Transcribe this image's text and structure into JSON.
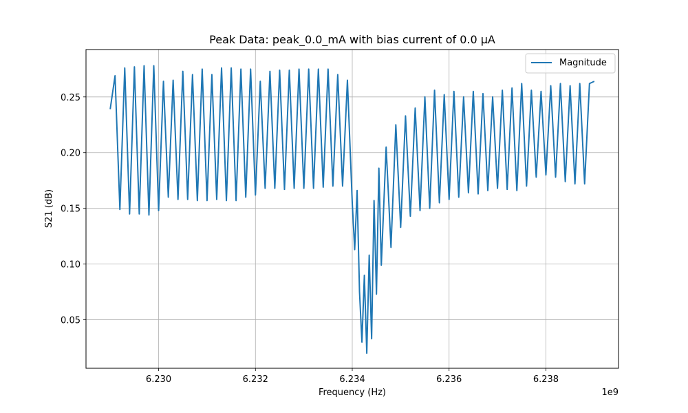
{
  "chart_data": {
    "type": "line",
    "title": "Peak Data: peak_0.0_mA with bias current of 0.0 μA",
    "xlabel": "Frequency (Hz)",
    "ylabel": "S21 (dB)",
    "x_offset_label": "1e9",
    "xlim": [
      6.2285,
      6.2395
    ],
    "ylim": [
      0.0065,
      0.2925
    ],
    "x_ticks": [
      6.23,
      6.232,
      6.234,
      6.236,
      6.238
    ],
    "x_tick_labels": [
      "6.230",
      "6.232",
      "6.234",
      "6.236",
      "6.238"
    ],
    "y_ticks": [
      0.05,
      0.1,
      0.15,
      0.2,
      0.25
    ],
    "y_tick_labels": [
      "0.05",
      "0.10",
      "0.15",
      "0.20",
      "0.25"
    ],
    "grid": true,
    "legend_position": "upper right",
    "series": [
      {
        "name": "Magnitude",
        "color": "#1f77b4",
        "x_start": 6.229,
        "x_end": 6.239,
        "dip_center": 6.23423,
        "cycles": 100,
        "start_value": 0.239,
        "end_value": 0.264,
        "points": [
          [
            6.229,
            0.239
          ],
          [
            6.2291,
            0.269
          ],
          [
            6.2292,
            0.149
          ],
          [
            6.2293,
            0.276
          ],
          [
            6.2294,
            0.145
          ],
          [
            6.2295,
            0.277
          ],
          [
            6.2296,
            0.145
          ],
          [
            6.2297,
            0.278
          ],
          [
            6.2298,
            0.144
          ],
          [
            6.2299,
            0.278
          ],
          [
            6.23,
            0.148
          ],
          [
            6.2301,
            0.264
          ],
          [
            6.2302,
            0.16
          ],
          [
            6.2303,
            0.265
          ],
          [
            6.2304,
            0.158
          ],
          [
            6.2305,
            0.273
          ],
          [
            6.2306,
            0.158
          ],
          [
            6.2307,
            0.27
          ],
          [
            6.2308,
            0.157
          ],
          [
            6.2309,
            0.275
          ],
          [
            6.231,
            0.157
          ],
          [
            6.2311,
            0.27
          ],
          [
            6.2312,
            0.158
          ],
          [
            6.2313,
            0.276
          ],
          [
            6.2314,
            0.157
          ],
          [
            6.2315,
            0.276
          ],
          [
            6.2316,
            0.157
          ],
          [
            6.2317,
            0.275
          ],
          [
            6.2318,
            0.16
          ],
          [
            6.2319,
            0.275
          ],
          [
            6.232,
            0.162
          ],
          [
            6.2321,
            0.264
          ],
          [
            6.2322,
            0.168
          ],
          [
            6.2323,
            0.273
          ],
          [
            6.2324,
            0.168
          ],
          [
            6.2325,
            0.274
          ],
          [
            6.2326,
            0.167
          ],
          [
            6.2327,
            0.274
          ],
          [
            6.2328,
            0.168
          ],
          [
            6.2329,
            0.275
          ],
          [
            6.233,
            0.168
          ],
          [
            6.2331,
            0.275
          ],
          [
            6.2332,
            0.168
          ],
          [
            6.2333,
            0.275
          ],
          [
            6.2334,
            0.169
          ],
          [
            6.2335,
            0.275
          ],
          [
            6.2336,
            0.17
          ],
          [
            6.2337,
            0.27
          ],
          [
            6.2338,
            0.17
          ],
          [
            6.2339,
            0.265
          ],
          [
            6.234,
            0.155
          ],
          [
            6.23405,
            0.113
          ],
          [
            6.2341,
            0.166
          ],
          [
            6.23415,
            0.075
          ],
          [
            6.2342,
            0.03
          ],
          [
            6.23425,
            0.09
          ],
          [
            6.2343,
            0.02
          ],
          [
            6.23435,
            0.108
          ],
          [
            6.2344,
            0.033
          ],
          [
            6.23445,
            0.157
          ],
          [
            6.2345,
            0.073
          ],
          [
            6.23455,
            0.186
          ],
          [
            6.2346,
            0.099
          ],
          [
            6.2347,
            0.205
          ],
          [
            6.2348,
            0.115
          ],
          [
            6.2349,
            0.225
          ],
          [
            6.235,
            0.133
          ],
          [
            6.2351,
            0.233
          ],
          [
            6.2352,
            0.143
          ],
          [
            6.2353,
            0.24
          ],
          [
            6.2354,
            0.148
          ],
          [
            6.2355,
            0.25
          ],
          [
            6.2356,
            0.15
          ],
          [
            6.2357,
            0.256
          ],
          [
            6.2358,
            0.155
          ],
          [
            6.2359,
            0.252
          ],
          [
            6.236,
            0.158
          ],
          [
            6.2361,
            0.255
          ],
          [
            6.2362,
            0.16
          ],
          [
            6.2363,
            0.25
          ],
          [
            6.2364,
            0.164
          ],
          [
            6.2365,
            0.255
          ],
          [
            6.2366,
            0.163
          ],
          [
            6.2367,
            0.253
          ],
          [
            6.2368,
            0.166
          ],
          [
            6.2369,
            0.25
          ],
          [
            6.237,
            0.168
          ],
          [
            6.2371,
            0.256
          ],
          [
            6.2372,
            0.167
          ],
          [
            6.2373,
            0.258
          ],
          [
            6.2374,
            0.166
          ],
          [
            6.2375,
            0.262
          ],
          [
            6.2376,
            0.17
          ],
          [
            6.2377,
            0.256
          ],
          [
            6.2378,
            0.178
          ],
          [
            6.2379,
            0.255
          ],
          [
            6.238,
            0.18
          ],
          [
            6.2381,
            0.26
          ],
          [
            6.2382,
            0.178
          ],
          [
            6.2383,
            0.262
          ],
          [
            6.2384,
            0.174
          ],
          [
            6.2385,
            0.26
          ],
          [
            6.2386,
            0.172
          ],
          [
            6.2387,
            0.262
          ],
          [
            6.2388,
            0.172
          ],
          [
            6.2389,
            0.262
          ],
          [
            6.239,
            0.264
          ]
        ]
      }
    ]
  }
}
